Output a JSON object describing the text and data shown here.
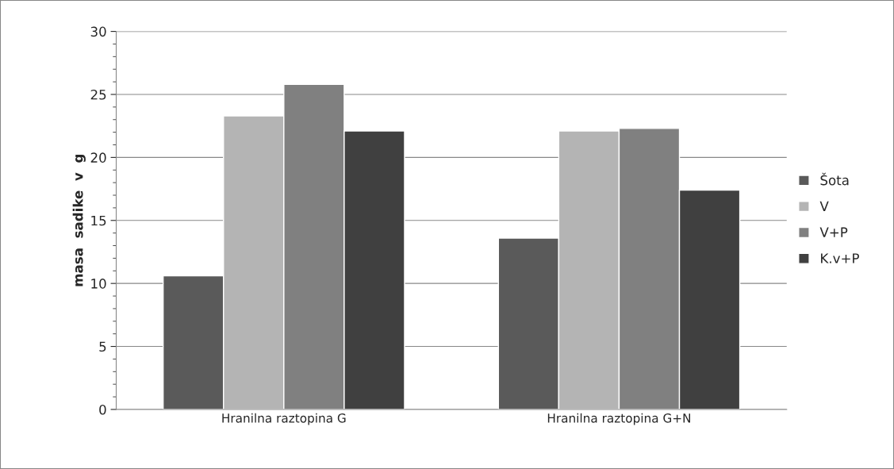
{
  "chart_data": {
    "type": "bar",
    "ylabel": "masa  sadike  v  g",
    "categories": [
      "Hranilna raztopina G",
      "Hranilna raztopina G+N"
    ],
    "series": [
      {
        "name": "Šota",
        "color": "#5a5a5a",
        "values": [
          10.6,
          13.6
        ]
      },
      {
        "name": "V",
        "color": "#b4b4b4",
        "values": [
          23.3,
          22.1
        ]
      },
      {
        "name": "V+P",
        "color": "#808080",
        "values": [
          25.8,
          22.3
        ]
      },
      {
        "name": "K.v+P",
        "color": "#404040",
        "values": [
          22.1,
          17.4
        ]
      }
    ],
    "ylim": [
      0,
      30
    ],
    "yticks": [
      0,
      5,
      10,
      15,
      20,
      25,
      30
    ],
    "grid": "y",
    "legend": "right"
  }
}
